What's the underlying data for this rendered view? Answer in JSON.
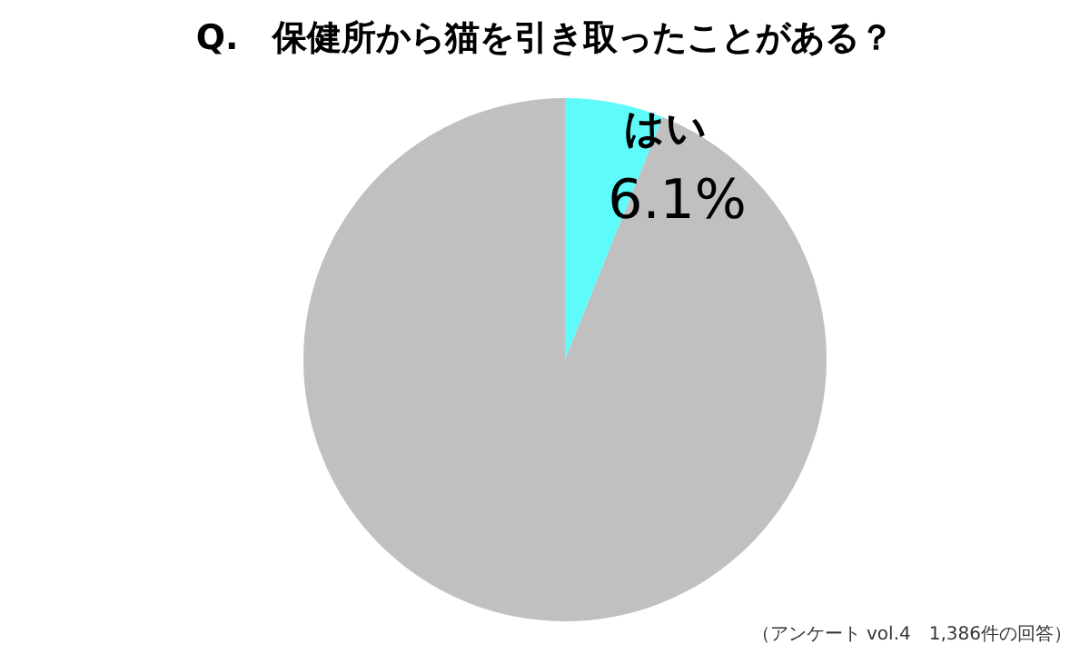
{
  "chart_data": {
    "type": "pie",
    "title": "Q.　保健所から猫を引き取ったことがある？",
    "categories": [
      "はい",
      null
    ],
    "values": [
      6.1,
      93.9
    ],
    "colors": [
      "#5ffbfb",
      "#c0c0c0"
    ],
    "value_labels": [
      "6.1%",
      null
    ],
    "legend": false,
    "annotations": [
      "（アンケート vol.4　1,386件の回答）"
    ]
  }
}
